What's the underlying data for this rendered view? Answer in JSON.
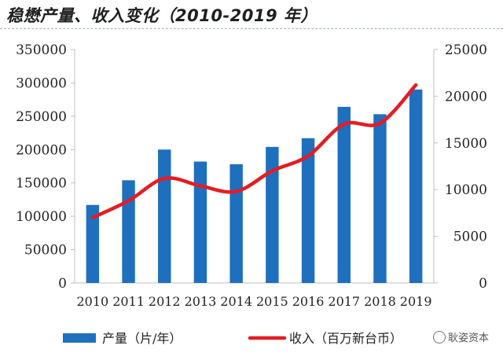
{
  "title": "稳懋产量、收入变化（2010-2019 年）",
  "watermark": "耿姿资本",
  "colors": {
    "bar": "#1f6fbf",
    "line": "#e41c23",
    "axis": "#bfbfbf"
  },
  "chart_data": {
    "type": "bar",
    "title": "稳懋产量、收入变化（2010-2019 年）",
    "categories": [
      "2010",
      "2011",
      "2012",
      "2013",
      "2014",
      "2015",
      "2016",
      "2017",
      "2018",
      "2019"
    ],
    "y_left": {
      "min": 0,
      "max": 350000,
      "ticks": [
        "0",
        "50000",
        "100000",
        "150000",
        "200000",
        "250000",
        "300000",
        "350000"
      ]
    },
    "y_right": {
      "min": 0,
      "max": 25000,
      "ticks": [
        "0",
        "5000",
        "10000",
        "15000",
        "20000",
        "25000"
      ]
    },
    "series": [
      {
        "name": "产量（片/年）",
        "type": "bar",
        "axis": "left",
        "values": [
          117000,
          154000,
          200000,
          182000,
          178000,
          204000,
          217000,
          264000,
          253000,
          290000
        ]
      },
      {
        "name": "收入（百万新台币）",
        "type": "line",
        "axis": "right",
        "values": [
          7000,
          8800,
          11200,
          10400,
          9800,
          12000,
          13600,
          17000,
          17100,
          21200
        ]
      }
    ],
    "grid": false,
    "legend": "bottom"
  }
}
